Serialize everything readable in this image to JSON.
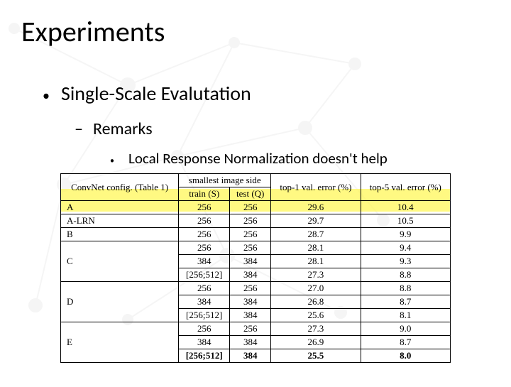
{
  "slide": {
    "title": "Experiments",
    "level1": "Single-Scale Evalutation",
    "level2": "Remarks",
    "level3": "Local Response Normalization doesn't help"
  },
  "table": {
    "type": "table",
    "headers": [
      "ConvNet config. (Table 1)",
      "train (S)",
      "test (Q)",
      "top-1 val. error (%)",
      "top-5 val. error (%)"
    ],
    "header_group_smallest": "smallest image side",
    "rows": [
      {
        "cfg": "A",
        "train": "256",
        "test": "256",
        "top1": "29.6",
        "top5": "10.4"
      },
      {
        "cfg": "A-LRN",
        "train": "256",
        "test": "256",
        "top1": "29.7",
        "top5": "10.5"
      },
      {
        "cfg": "B",
        "train": "256",
        "test": "256",
        "top1": "28.7",
        "top5": "9.9"
      },
      {
        "cfg": "C",
        "train": "256",
        "test": "256",
        "top1": "28.1",
        "top5": "9.4"
      },
      {
        "cfg": "",
        "train": "384",
        "test": "384",
        "top1": "28.1",
        "top5": "9.3"
      },
      {
        "cfg": "",
        "train": "[256;512]",
        "test": "384",
        "top1": "27.3",
        "top5": "8.8"
      },
      {
        "cfg": "D",
        "train": "256",
        "test": "256",
        "top1": "27.0",
        "top5": "8.8"
      },
      {
        "cfg": "",
        "train": "384",
        "test": "384",
        "top1": "26.8",
        "top5": "8.7"
      },
      {
        "cfg": "",
        "train": "[256;512]",
        "test": "384",
        "top1": "25.6",
        "top5": "8.1"
      },
      {
        "cfg": "E",
        "train": "256",
        "test": "256",
        "top1": "27.3",
        "top5": "9.0"
      },
      {
        "cfg": "",
        "train": "384",
        "test": "384",
        "top1": "26.9",
        "top5": "8.7"
      },
      {
        "cfg": "",
        "train": "[256;512]",
        "test": "384",
        "top1": "25.5",
        "top5": "8.0",
        "bold": true
      }
    ],
    "row_groups": [
      {
        "cfg": "A",
        "span": 1
      },
      {
        "cfg": "A-LRN",
        "span": 1
      },
      {
        "cfg": "B",
        "span": 1
      },
      {
        "cfg": "C",
        "span": 3
      },
      {
        "cfg": "D",
        "span": 3
      },
      {
        "cfg": "E",
        "span": 3
      }
    ],
    "highlight_rows": [
      0,
      1
    ],
    "font_family": "Times New Roman",
    "font_size_pt": 10,
    "border_color": "#000000",
    "highlight_color": "#fff64d",
    "background_color": "#ffffff"
  }
}
